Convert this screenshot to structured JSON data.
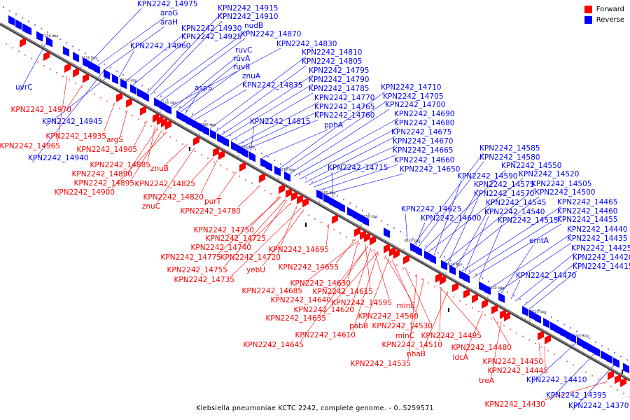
{
  "legend": {
    "forward_label": "Forward",
    "reverse_label": "Reverse",
    "forward_color": "#ff0000",
    "reverse_color": "#0000ff"
  },
  "caption": "Klebsiella pneumoniae KCTC 2242, complete genome. - 0..5259571",
  "ticks": [
    "3130 kbp",
    "3120 kbp",
    "3110 kbp",
    "3100 kbp",
    "3090 kbp",
    "3080 kbp",
    "3070 kbp",
    "3060 kbp",
    "3050 kbp",
    "3040 kbp",
    "3030 kbp",
    "3020 kbp",
    "3010 kbp",
    "3000 kbp"
  ],
  "reverse_labels": [
    "KPN2242_14975",
    "araG",
    "araH",
    "KPN2242_14960",
    "KPN2242_14930",
    "KPN2242_14925",
    "KPN2242_14915",
    "KPN2242_14910",
    "nudB",
    "KPN2242_14870",
    "KPN2242_14830",
    "ruvC",
    "ruvA",
    "ruvB",
    "aspS",
    "znuA",
    "KPN2242_14835",
    "KPN2242_14810",
    "KPN2242_14805",
    "KPN2242_14795",
    "KPN2242_14790",
    "KPN2242_14785",
    "KPN2242_14770",
    "KPN2242_14765",
    "KPN2242_14760",
    "KPN2242_14815",
    "pphA",
    "KPN2242_14710",
    "KPN2242_14705",
    "KPN2242_14700",
    "KPN2242_14690",
    "KPN2242_14680",
    "KPN2242_14675",
    "KPN2242_14670",
    "KPN2242_14665",
    "KPN2242_14660",
    "KPN2242_14650",
    "KPN2242_14715",
    "KPN2242_14585",
    "KPN2242_14580",
    "KPN2242_14550",
    "KPN2242_14520",
    "KPN2242_14590",
    "KPN2242_14575",
    "KPN2242_14505",
    "KPN2242_14570",
    "KPN2242_14500",
    "KPN2242_14545",
    "KPN2242_14465",
    "KPN2242_14540",
    "KPN2242_14460",
    "KPN2242_14625",
    "KPN2242_14455",
    "KPN2242_14600",
    "KPN2242_14515",
    "KPN2242_14440",
    "KPN2242_14435",
    "emtA",
    "KPN2242_14425",
    "KPN2242_14420",
    "KPN2242_14415",
    "KPN2242_14470",
    "uvrC",
    "KPN2242_14945",
    "KPN2242_14940",
    "KPN2242_14410",
    "KPN2242_14395",
    "KPN2242_14370"
  ],
  "forward_labels": [
    "KPN2242_14970",
    "KPN2242_14935",
    "argS",
    "KPN2242_14965",
    "KPN2242_14905",
    "KPN2242_14885",
    "KPN2242_14890",
    "znuB",
    "KPN2242_14895",
    "KPN2242_14900",
    "KPN2242_14825",
    "KPN2242_14820",
    "znuC",
    "purT",
    "KPN2242_14780",
    "KPN2242_14750",
    "KPN2242_14725",
    "KPN2242_14740",
    "KPN2242_14695",
    "KPN2242_14775",
    "KPN2242_14720",
    "KPN2242_14755",
    "yebU",
    "KPN2242_14735",
    "KPN2242_14655",
    "KPN2242_14630",
    "KPN2242_14685",
    "KPN2242_14615",
    "KPN2242_14640",
    "KPN2242_14595",
    "minE",
    "KPN2242_14620",
    "KPN2242_14560",
    "KPN2242_14635",
    "pabB",
    "KPN2242_14530",
    "KPN2242_14610",
    "minC",
    "KPN2242_14495",
    "KPN2242_14645",
    "KPN2242_14510",
    "nhaB",
    "KPN2242_14480",
    "ldcA",
    "KPN2242_14535",
    "KPN2242_14450",
    "KPN2242_14445",
    "treA",
    "KPN2242_14430"
  ]
}
